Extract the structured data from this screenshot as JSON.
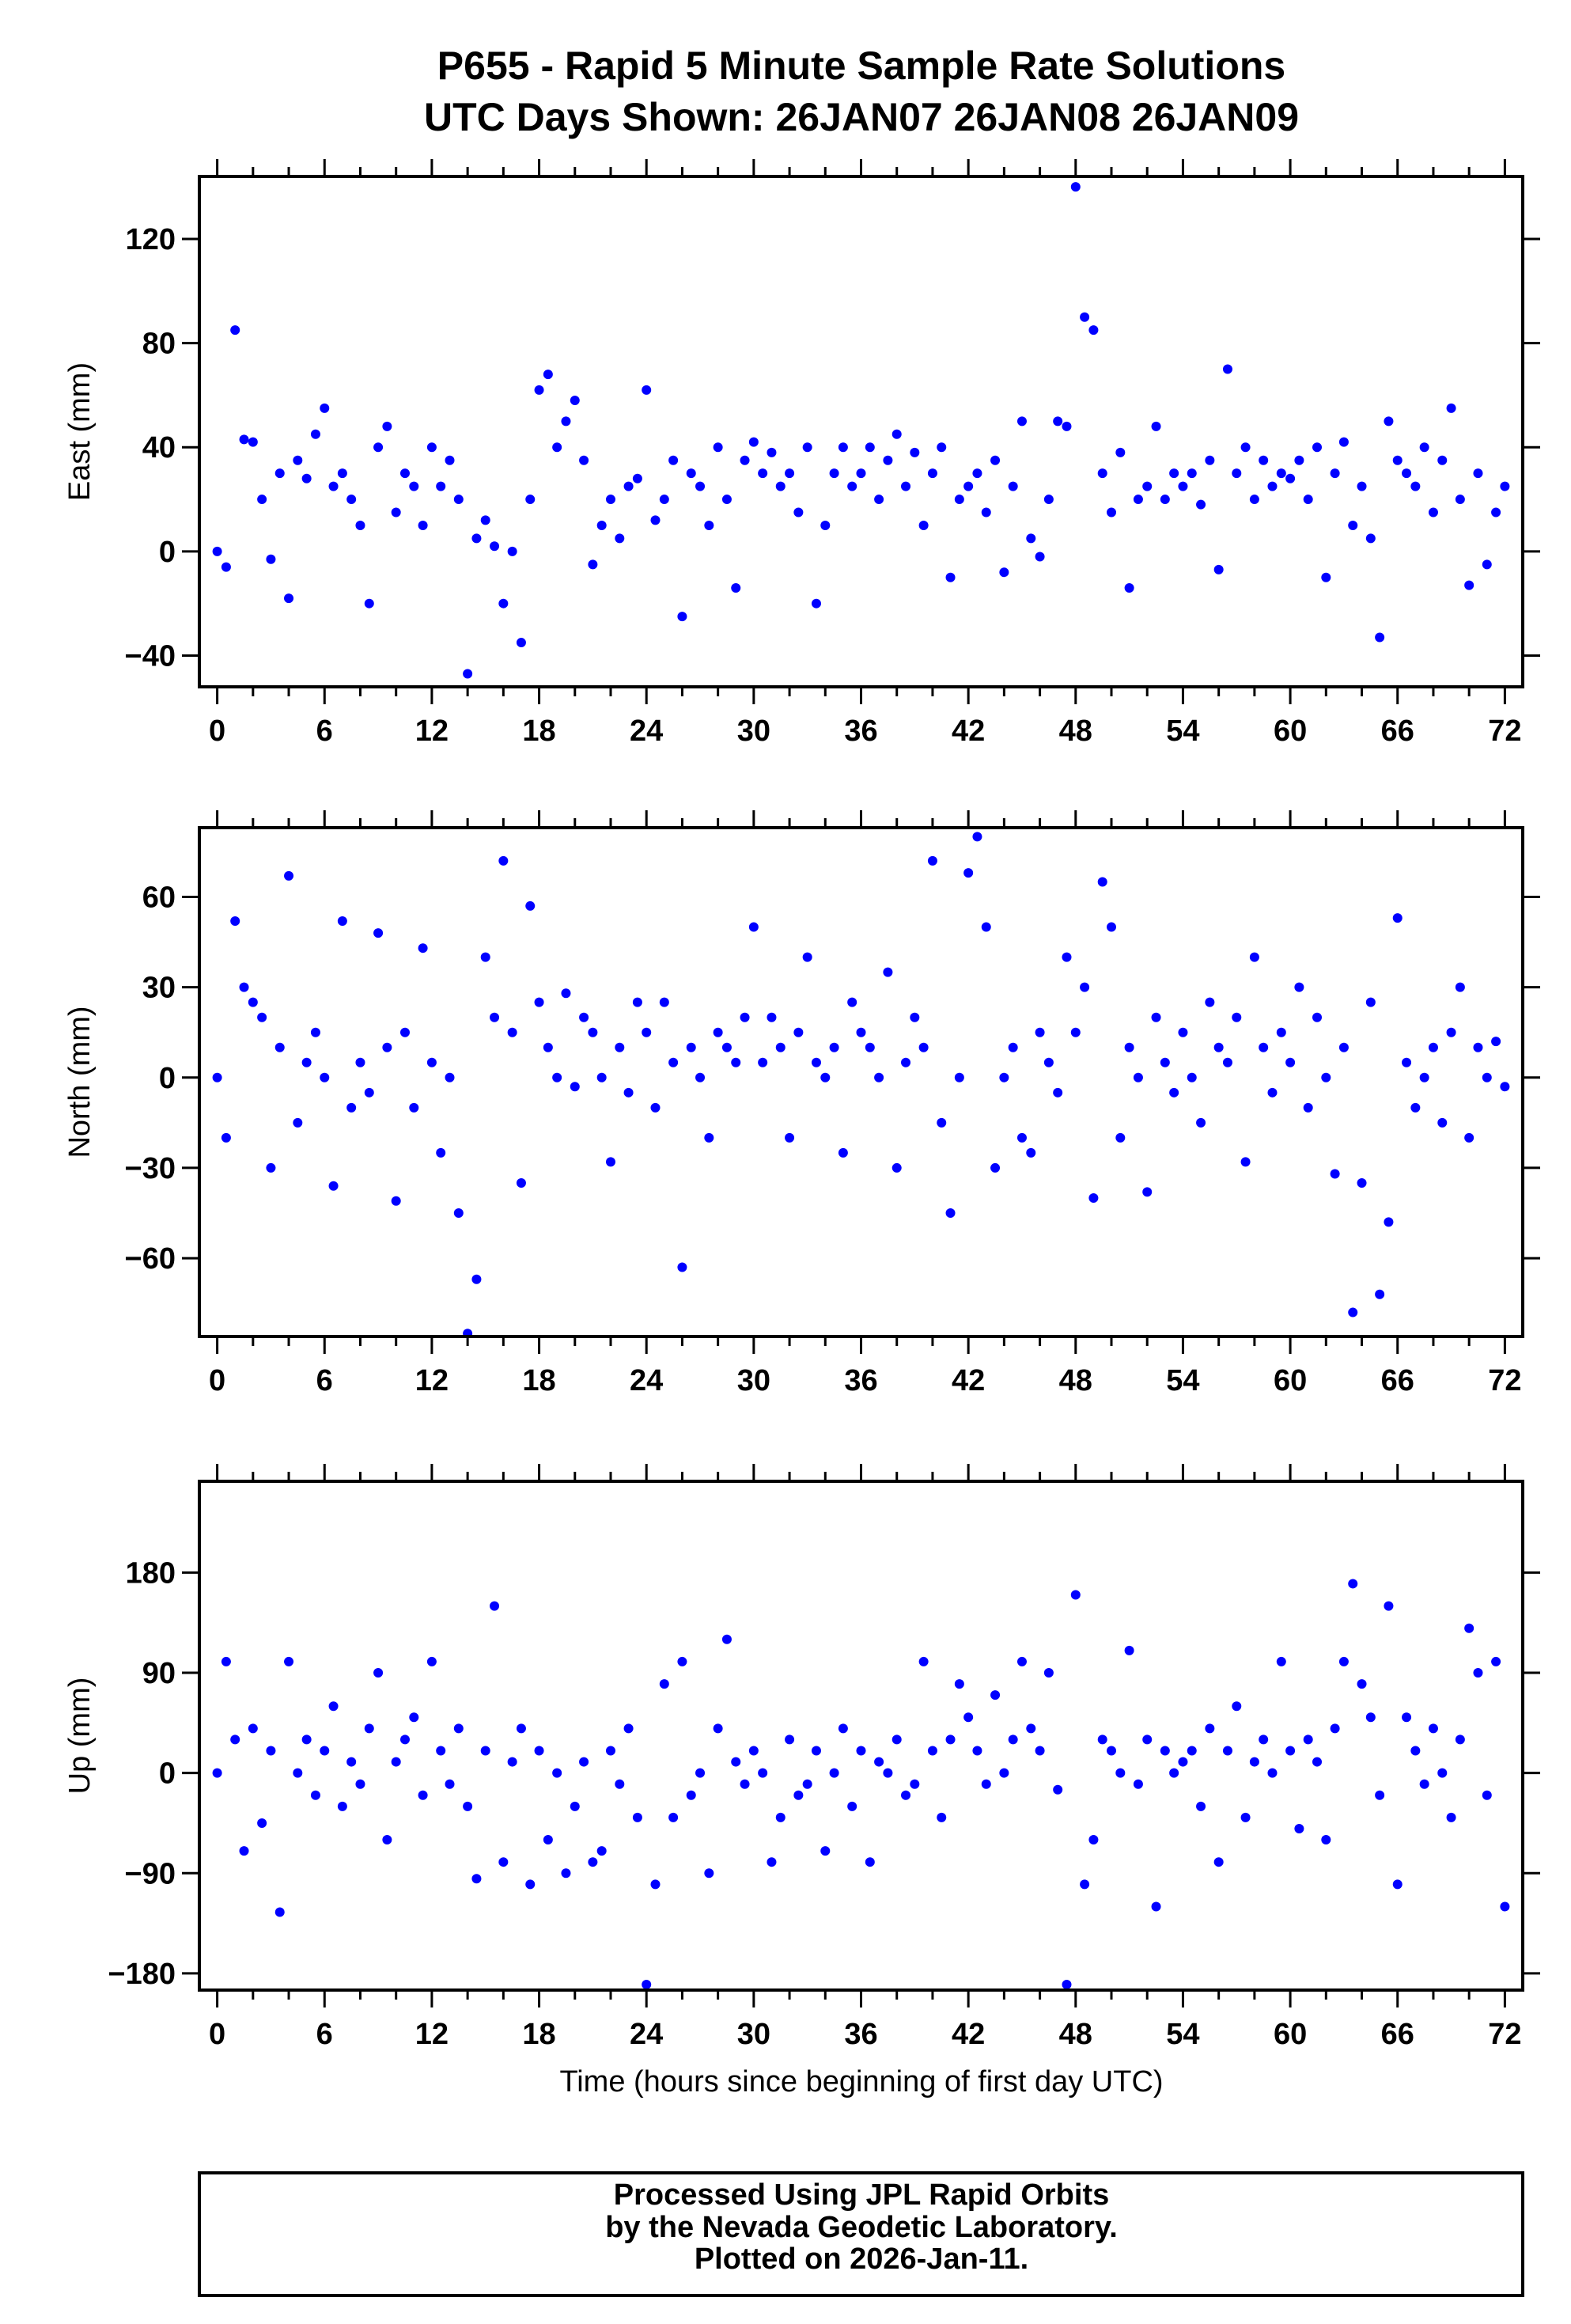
{
  "chart_data": [
    {
      "type": "scatter",
      "title": "P655 - Rapid 5 Minute Sample Rate Solutions",
      "subtitle": "UTC Days Shown:  26JAN07 26JAN08 26JAN09",
      "ylabel": "East (mm)",
      "xlabel": "",
      "xlim": [
        -1,
        73
      ],
      "ylim": [
        -52,
        144
      ],
      "xticks": [
        "0",
        "6",
        "12",
        "18",
        "24",
        "30",
        "36",
        "42",
        "48",
        "54",
        "60",
        "66",
        "72"
      ],
      "yticks": [
        "−40",
        "0",
        "40",
        "80",
        "120"
      ],
      "ytick_values": [
        -40,
        0,
        40,
        80,
        120
      ],
      "marker_color": "#0000ff",
      "x_start": 0,
      "x_step": 0.5,
      "y": [
        0,
        -6,
        85,
        43,
        42,
        20,
        -3,
        30,
        -18,
        35,
        28,
        45,
        55,
        25,
        30,
        20,
        10,
        -20,
        40,
        48,
        15,
        30,
        25,
        10,
        40,
        25,
        35,
        20,
        -47,
        5,
        12,
        2,
        -20,
        0,
        -35,
        20,
        62,
        68,
        40,
        50,
        58,
        35,
        -5,
        10,
        20,
        5,
        25,
        28,
        62,
        12,
        20,
        35,
        -25,
        30,
        25,
        10,
        40,
        20,
        -14,
        35,
        42,
        30,
        38,
        25,
        30,
        15,
        40,
        -20,
        10,
        30,
        40,
        25,
        30,
        40,
        20,
        35,
        45,
        25,
        38,
        10,
        30,
        40,
        -10,
        20,
        25,
        30,
        15,
        35,
        -8,
        25,
        50,
        5,
        -2,
        20,
        50,
        48,
        140,
        90,
        85,
        30,
        15,
        38,
        -14,
        20,
        25,
        48,
        20,
        30,
        25,
        30,
        18,
        35,
        -7,
        70,
        30,
        40,
        20,
        35,
        25,
        30,
        28,
        35,
        20,
        40,
        -10,
        30,
        42,
        10,
        25,
        5,
        -33,
        50,
        35,
        30,
        25,
        40,
        15,
        35,
        55,
        20,
        -13,
        30,
        -5,
        15,
        25
      ]
    },
    {
      "type": "scatter",
      "ylabel": "North (mm)",
      "xlabel": "",
      "xlim": [
        -1,
        73
      ],
      "ylim": [
        -86,
        83
      ],
      "xticks": [
        "0",
        "6",
        "12",
        "18",
        "24",
        "30",
        "36",
        "42",
        "48",
        "54",
        "60",
        "66",
        "72"
      ],
      "yticks": [
        "−60",
        "−30",
        "0",
        "30",
        "60"
      ],
      "ytick_values": [
        -60,
        -30,
        0,
        30,
        60
      ],
      "marker_color": "#0000ff",
      "x_start": 0,
      "x_step": 0.5,
      "y": [
        0,
        -20,
        52,
        30,
        25,
        20,
        -30,
        10,
        67,
        -15,
        5,
        15,
        0,
        -36,
        52,
        -10,
        5,
        -5,
        48,
        10,
        -41,
        15,
        -10,
        43,
        5,
        -25,
        0,
        -45,
        -85,
        -67,
        40,
        20,
        72,
        15,
        -35,
        57,
        25,
        10,
        0,
        28,
        -3,
        20,
        15,
        0,
        -28,
        10,
        -5,
        25,
        15,
        -10,
        25,
        5,
        -63,
        10,
        0,
        -20,
        15,
        10,
        5,
        20,
        50,
        5,
        20,
        10,
        -20,
        15,
        40,
        5,
        0,
        10,
        -25,
        25,
        15,
        10,
        0,
        35,
        -30,
        5,
        20,
        10,
        72,
        -15,
        -45,
        0,
        68,
        80,
        50,
        -30,
        0,
        10,
        -20,
        -25,
        15,
        5,
        -5,
        40,
        15,
        30,
        -40,
        65,
        50,
        -20,
        10,
        0,
        -38,
        20,
        5,
        -5,
        15,
        0,
        -15,
        25,
        10,
        5,
        20,
        -28,
        40,
        10,
        -5,
        15,
        5,
        30,
        -10,
        20,
        0,
        -32,
        10,
        -78,
        -35,
        25,
        -72,
        -48,
        53,
        5,
        -10,
        0,
        10,
        -15,
        15,
        30,
        -20,
        10,
        0,
        12,
        -3
      ]
    },
    {
      "type": "scatter",
      "ylabel": "Up (mm)",
      "xlabel": "Time (hours since beginning of first day UTC)",
      "xlim": [
        -1,
        73
      ],
      "ylim": [
        -195,
        262
      ],
      "xticks": [
        "0",
        "6",
        "12",
        "18",
        "24",
        "30",
        "36",
        "42",
        "48",
        "54",
        "60",
        "66",
        "72"
      ],
      "yticks": [
        "−180",
        "−90",
        "0",
        "90",
        "180"
      ],
      "ytick_values": [
        -180,
        -90,
        0,
        90,
        180
      ],
      "marker_color": "#0000ff",
      "x_start": 0,
      "x_step": 0.5,
      "y": [
        0,
        100,
        30,
        -70,
        40,
        -45,
        20,
        -125,
        100,
        0,
        30,
        -20,
        20,
        60,
        -30,
        10,
        -10,
        40,
        90,
        -60,
        10,
        30,
        50,
        -20,
        100,
        20,
        -10,
        40,
        -30,
        -95,
        20,
        150,
        -80,
        10,
        40,
        -100,
        20,
        -60,
        0,
        -90,
        -30,
        10,
        -80,
        -70,
        20,
        -10,
        40,
        -40,
        -190,
        -100,
        80,
        -40,
        100,
        -20,
        0,
        -90,
        40,
        120,
        10,
        -10,
        20,
        0,
        -80,
        -40,
        30,
        -20,
        -10,
        20,
        -70,
        0,
        40,
        -30,
        20,
        -80,
        10,
        0,
        30,
        -20,
        -10,
        100,
        20,
        -40,
        30,
        80,
        50,
        20,
        -10,
        70,
        0,
        30,
        100,
        40,
        20,
        90,
        -15,
        -190,
        160,
        -100,
        -60,
        30,
        20,
        0,
        110,
        -10,
        30,
        -120,
        20,
        0,
        10,
        20,
        -30,
        40,
        -80,
        20,
        60,
        -40,
        10,
        30,
        0,
        100,
        20,
        -50,
        30,
        10,
        -60,
        40,
        100,
        170,
        80,
        50,
        -20,
        150,
        -100,
        50,
        20,
        -10,
        40,
        0,
        -40,
        30,
        130,
        90,
        -20,
        100,
        -120
      ]
    }
  ],
  "footer": {
    "line1": "Processed Using JPL Rapid Orbits",
    "line2": "by the Nevada Geodetic Laboratory.",
    "line3": "Plotted on 2026-Jan-11."
  }
}
